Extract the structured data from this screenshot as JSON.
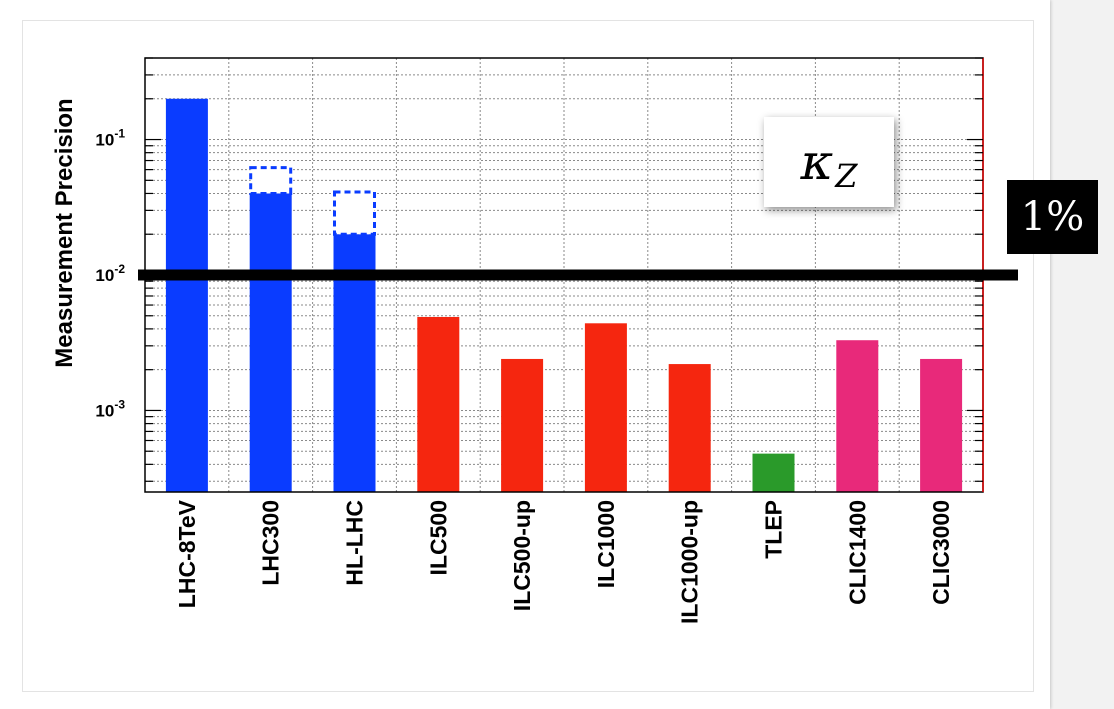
{
  "chart_data": {
    "type": "bar",
    "title": "",
    "xlabel": "",
    "ylabel": "Measurement Precision",
    "yscale": "log",
    "ylim": [
      0.00025,
      0.4
    ],
    "grid": true,
    "categories": [
      "LHC-8TeV",
      "LHC300",
      "HL-LHC",
      "ILC500",
      "ILC500-up",
      "ILC1000",
      "ILC1000-up",
      "TLEP",
      "CLIC1400",
      "CLIC3000"
    ],
    "values": [
      0.2,
      0.04,
      0.02,
      0.0049,
      0.0024,
      0.0044,
      0.0022,
      0.00048,
      0.0033,
      0.0024
    ],
    "range_high": [
      null,
      0.062,
      0.041,
      null,
      null,
      null,
      null,
      null,
      null,
      null
    ],
    "bar_colors": [
      "#0a3cff",
      "#0a3cff",
      "#0a3cff",
      "#f5260f",
      "#f5260f",
      "#f5260f",
      "#f5260f",
      "#2a9a2a",
      "#e8297a",
      "#e8297a"
    ],
    "yticks": [
      {
        "value": 0.1,
        "base": "10",
        "exp": "-1"
      },
      {
        "value": 0.01,
        "base": "10",
        "exp": "-2"
      },
      {
        "value": 0.001,
        "base": "10",
        "exp": "-3"
      }
    ],
    "reference_line": {
      "value": 0.01,
      "label": "1%"
    },
    "annotation": {
      "symbol": "κ",
      "subscript": "Z"
    }
  }
}
